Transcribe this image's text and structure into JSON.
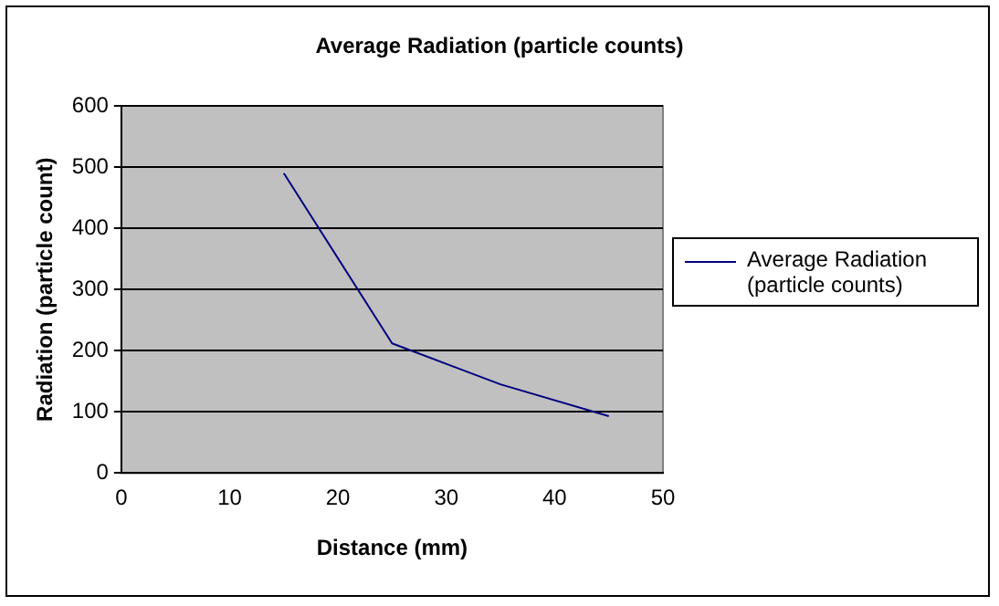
{
  "chart_data": {
    "type": "line",
    "title": "Average Radiation (particle counts)",
    "xlabel": "Distance (mm)",
    "ylabel": "Radiation (particle count)",
    "series": [
      {
        "name": "Average Radiation (particle counts)",
        "color": "#000080",
        "x": [
          15,
          25,
          35,
          45
        ],
        "values": [
          490,
          212,
          145,
          93
        ]
      }
    ],
    "xlim": [
      0,
      50
    ],
    "xticks": [
      0,
      10,
      20,
      30,
      40,
      50
    ],
    "ylim": [
      0,
      600
    ],
    "yticks": [
      0,
      100,
      200,
      300,
      400,
      500,
      600
    ],
    "grid": "y",
    "legend": "right",
    "marker": "none",
    "line_style": "solid"
  }
}
